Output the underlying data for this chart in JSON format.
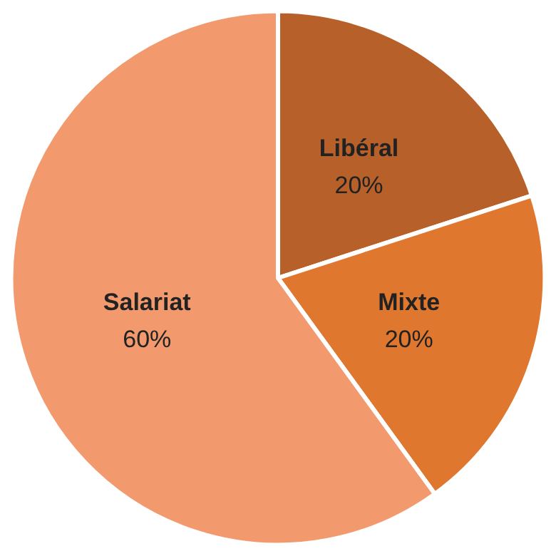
{
  "chart_data": {
    "type": "pie",
    "categories": [
      "Libéral",
      "Mixte",
      "Salariat"
    ],
    "values": [
      20,
      20,
      60
    ],
    "value_labels": [
      "20%",
      "20%",
      "60%"
    ],
    "colors": [
      "#b8602a",
      "#e0772f",
      "#f3996e"
    ]
  }
}
